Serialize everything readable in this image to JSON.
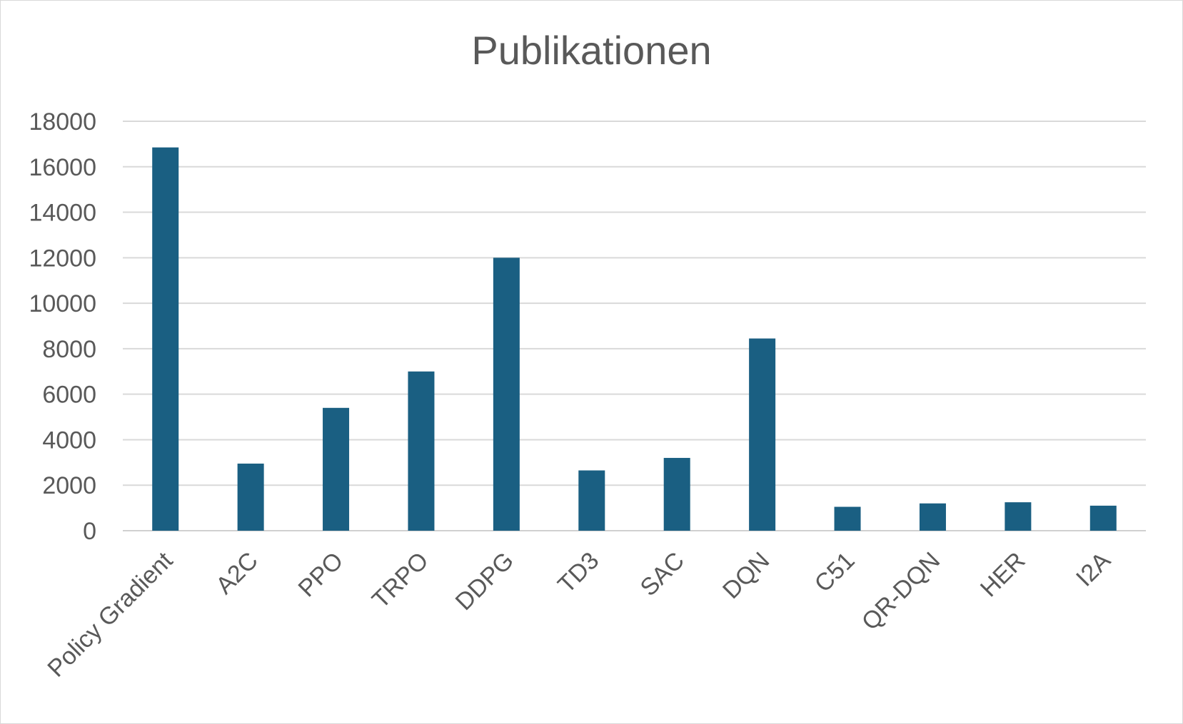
{
  "chart_data": {
    "type": "bar",
    "title": "Publikationen",
    "xlabel": "",
    "ylabel": "",
    "ylim": [
      0,
      18000
    ],
    "yticks": [
      0,
      2000,
      4000,
      6000,
      8000,
      10000,
      12000,
      14000,
      16000,
      18000
    ],
    "grid": true,
    "legend": "none",
    "bar_color": "#1a5f82",
    "categories": [
      "Policy Gradient",
      "A2C",
      "PPO",
      "TRPO",
      "DDPG",
      "TD3",
      "SAC",
      "DQN",
      "C51",
      "QR-DQN",
      "HER",
      "I2A"
    ],
    "values": [
      16850,
      2950,
      5400,
      7000,
      12000,
      2650,
      3200,
      8450,
      1050,
      1200,
      1250,
      1100
    ]
  }
}
